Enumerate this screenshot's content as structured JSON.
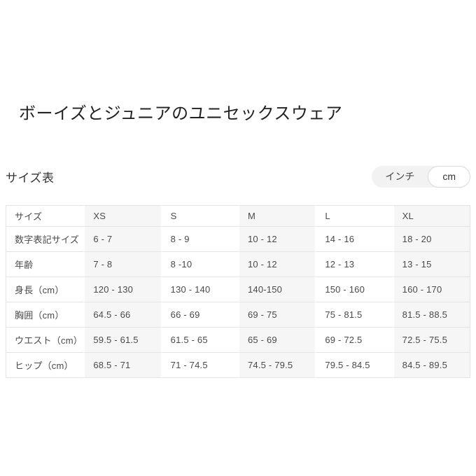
{
  "page": {
    "title": "ボーイズとジュニアのユニセックスウェア"
  },
  "size_chart": {
    "heading": "サイズ表",
    "unit_toggle": {
      "options": [
        {
          "label": "インチ",
          "selected": false
        },
        {
          "label": "cm",
          "selected": true
        }
      ]
    },
    "table": {
      "columns": [
        "サイズ",
        "XS",
        "S",
        "M",
        "L",
        "XL"
      ],
      "rows": [
        {
          "label": "数字表記サイズ",
          "values": [
            "6 - 7",
            "8 - 9",
            "10 - 12",
            "14 - 16",
            "18 - 20"
          ]
        },
        {
          "label": "年齢",
          "values": [
            "7 - 8",
            "8 -10",
            "10 - 12",
            "12 - 13",
            "13 - 15"
          ]
        },
        {
          "label": "身長（cm）",
          "values": [
            "120 - 130",
            "130 - 140",
            "140-150",
            "150 - 160",
            "160 - 170"
          ]
        },
        {
          "label": "胸囲（cm）",
          "values": [
            "64.5 - 66",
            "66 - 69",
            "69 - 75",
            "75 - 81.5",
            "81.5 - 88.5"
          ]
        },
        {
          "label": "ウエスト（cm）",
          "values": [
            "59.5 - 61.5",
            "61.5 - 65",
            "65 - 69",
            "69 - 72.5",
            "72.5 - 75.5"
          ]
        },
        {
          "label": "ヒップ（cm）",
          "values": [
            "68.5 - 71",
            "71 - 74.5",
            "74.5 - 79.5",
            "79.5 - 84.5",
            "84.5 - 89.5"
          ]
        }
      ]
    }
  },
  "colors": {
    "column_tint": "#f6f6f6",
    "row_border": "#e3e3e3",
    "toggle_background": "#f2f2f2",
    "selected_pill_background": "#ffffff"
  }
}
